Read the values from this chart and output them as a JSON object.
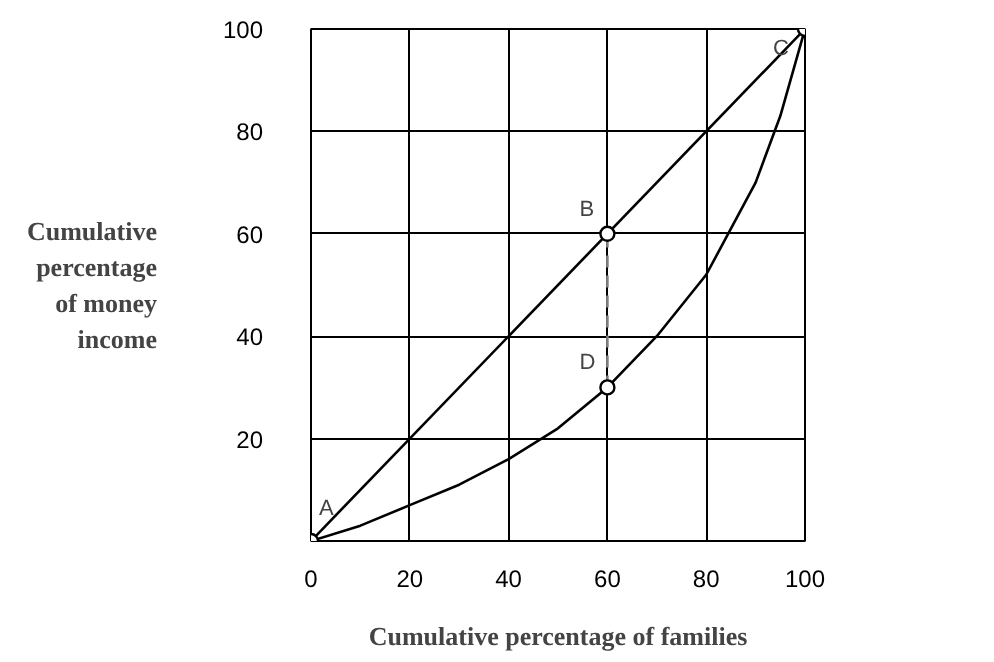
{
  "chart_data": {
    "type": "line",
    "xlabel": "Cumulative percentage of families",
    "ylabel": "Cumulative percentage of money income",
    "xlim": [
      0,
      100
    ],
    "ylim": [
      0,
      100
    ],
    "xticks": [
      0,
      20,
      40,
      60,
      80,
      100
    ],
    "yticks": [
      {
        "value": 0,
        "label": null
      },
      20,
      40,
      60,
      80,
      100
    ],
    "grid": true,
    "series": [
      {
        "color": "#000000",
        "x": [
          0,
          100
        ],
        "values": [
          0,
          100
        ],
        "line_style": "solid"
      },
      {
        "color": "#000000",
        "x": [
          0,
          10,
          20,
          30,
          40,
          50,
          60,
          70,
          80,
          90,
          95,
          100
        ],
        "values": [
          0,
          3,
          7,
          11,
          16,
          22,
          30,
          40,
          52,
          70,
          83,
          100
        ],
        "line_style": "solid"
      },
      {
        "color": "#808080",
        "x": [
          60,
          60
        ],
        "values": [
          30,
          60
        ],
        "line_style": "dashed"
      },
      {
        "type": "scatter",
        "color": "#000000",
        "x": [
          0,
          60,
          60,
          100
        ],
        "values": [
          0,
          60,
          30,
          100
        ],
        "marker": "circle"
      }
    ],
    "annotations": [
      {
        "text": "A",
        "x": 0,
        "y": 0
      },
      {
        "text": "B",
        "x": 60,
        "y": 60
      },
      {
        "text": "C",
        "x": 100,
        "y": 100
      },
      {
        "text": "D",
        "x": 60,
        "y": 30
      }
    ]
  }
}
